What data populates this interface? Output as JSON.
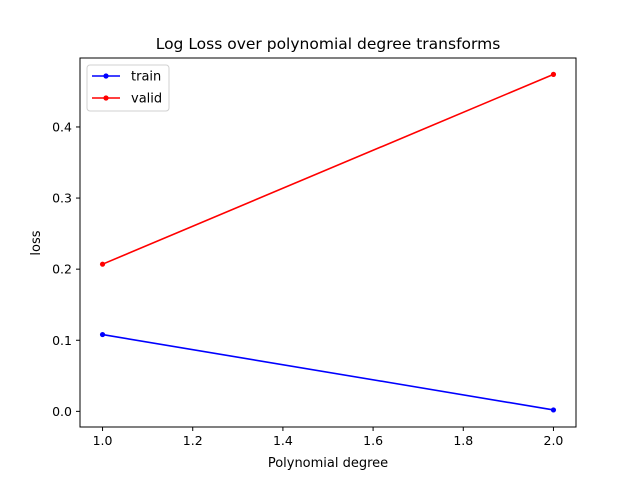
{
  "chart_data": {
    "type": "line",
    "title": "Log Loss over polynomial degree transforms",
    "xlabel": "Polynomial degree",
    "ylabel": "loss",
    "x": [
      1.0,
      2.0
    ],
    "series": [
      {
        "name": "train",
        "color": "#0000ff",
        "values": [
          0.108,
          0.002
        ]
      },
      {
        "name": "valid",
        "color": "#ff0000",
        "values": [
          0.207,
          0.474
        ]
      }
    ],
    "xlim": [
      0.95,
      2.05
    ],
    "ylim": [
      -0.022,
      0.497
    ],
    "xticks": [
      1.0,
      1.2,
      1.4,
      1.6,
      1.8,
      2.0
    ],
    "xtick_labels": [
      "1.0",
      "1.2",
      "1.4",
      "1.6",
      "1.8",
      "2.0"
    ],
    "yticks": [
      0.0,
      0.1,
      0.2,
      0.3,
      0.4
    ],
    "ytick_labels": [
      "0.0",
      "0.1",
      "0.2",
      "0.3",
      "0.4"
    ],
    "grid": false,
    "legend_position": "upper-left"
  }
}
